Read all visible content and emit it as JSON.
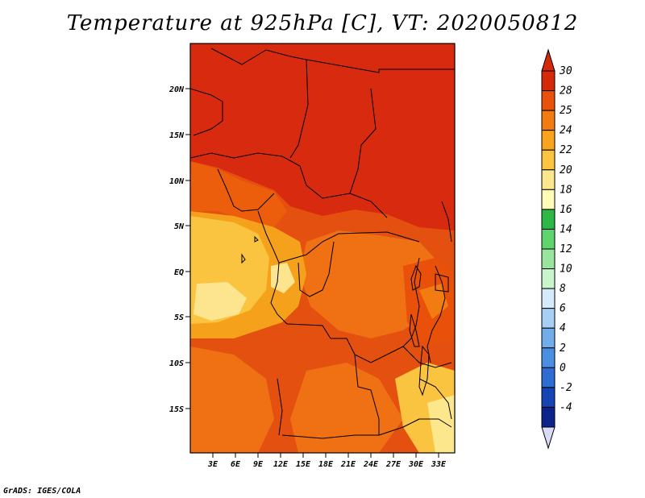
{
  "title": "Temperature at 925hPa [C], VT: 2020050812",
  "footer": "GrADS: IGES/COLA",
  "map": {
    "lat_labels": [
      "20N",
      "15N",
      "10N",
      "5N",
      "EQ",
      "5S",
      "10S",
      "15S"
    ],
    "lon_labels": [
      "3E",
      "6E",
      "9E",
      "12E",
      "15E",
      "18E",
      "21E",
      "24E",
      "27E",
      "30E",
      "33E"
    ]
  },
  "colorbar": {
    "labels": [
      "30",
      "28",
      "25",
      "24",
      "22",
      "20",
      "18",
      "16",
      "14",
      "12",
      "10",
      "8",
      "6",
      "4",
      "2",
      "0",
      "-2",
      "-4"
    ],
    "colors": [
      "#d42a0a",
      "#e9500a",
      "#f37c12",
      "#f9a41c",
      "#fbc440",
      "#fde78c",
      "#fffcb8",
      "#2db845",
      "#5fd46d",
      "#98e69d",
      "#c9f5cc",
      "#d5eafb",
      "#a7cff6",
      "#71aee9",
      "#4b8fe0",
      "#2d6dd3",
      "#1544b4",
      "#0c248a",
      "#061264"
    ],
    "top_color": "#d42a0a",
    "bottom_color": "#d8dcf7"
  }
}
